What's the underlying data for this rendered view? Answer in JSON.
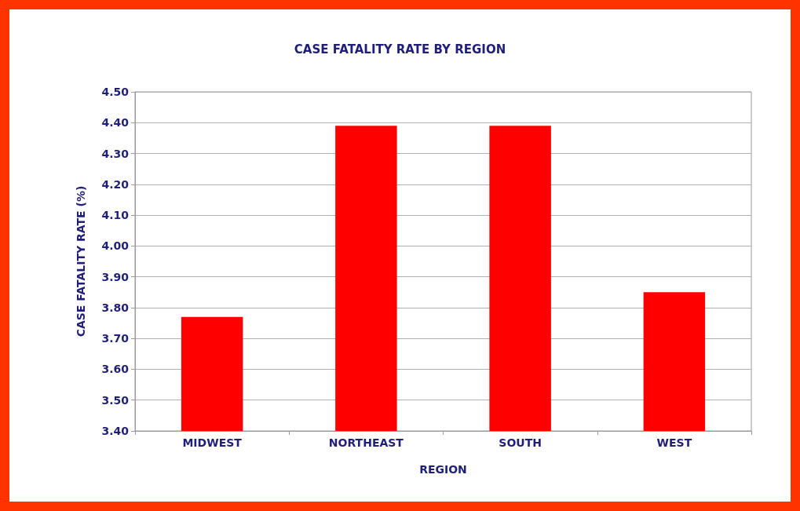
{
  "chart_data": {
    "type": "bar",
    "title": "CASE FATALITY RATE BY REGION",
    "xlabel": "REGION",
    "ylabel": "CASE FATALITY RATE (%)",
    "categories": [
      "MIDWEST",
      "NORTHEAST",
      "SOUTH",
      "WEST"
    ],
    "values": [
      3.77,
      4.39,
      4.39,
      3.85
    ],
    "color": "#ff0000",
    "ylim": [
      3.4,
      4.5
    ],
    "yticks": [
      {
        "value": 3.4,
        "label": "3.40"
      },
      {
        "value": 3.5,
        "label": "3.50"
      },
      {
        "value": 3.6,
        "label": "3.60"
      },
      {
        "value": 3.7,
        "label": "3.70"
      },
      {
        "value": 3.8,
        "label": "3.80"
      },
      {
        "value": 3.9,
        "label": "3.90"
      },
      {
        "value": 4.0,
        "label": "4.00"
      },
      {
        "value": 4.1,
        "label": "4.10"
      },
      {
        "value": 4.2,
        "label": "4.20"
      },
      {
        "value": 4.3,
        "label": "4.30"
      },
      {
        "value": 4.4,
        "label": "4.40"
      },
      {
        "value": 4.5,
        "label": "4.50"
      }
    ],
    "grid": "y"
  }
}
